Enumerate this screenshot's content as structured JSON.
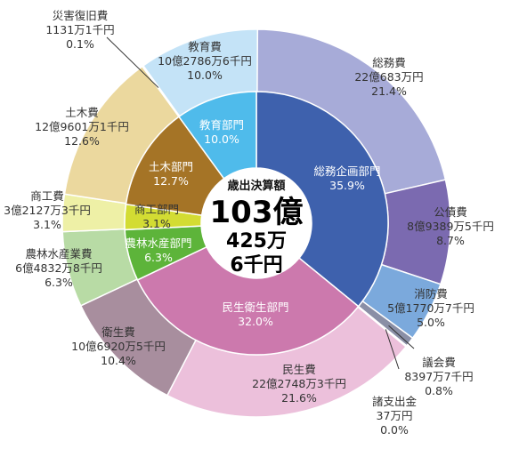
{
  "chart_data": [
    {
      "type": "pie",
      "ring": "outer",
      "slices": [
        {
          "name": "総務費",
          "amount": "22億683万円",
          "pct_label": "21.4%",
          "value": 21.4,
          "color": "#a7abd8"
        },
        {
          "name": "公債費",
          "amount": "8億9389万5千円",
          "pct_label": "8.7%",
          "value": 8.7,
          "color": "#7b6ab0"
        },
        {
          "name": "消防費",
          "amount": "5億1770万7千円",
          "pct_label": "5.0%",
          "value": 5.0,
          "color": "#7ba9dc"
        },
        {
          "name": "議会費",
          "amount": "8397万7千円",
          "pct_label": "0.8%",
          "value": 0.8,
          "color": "#8a8fa6"
        },
        {
          "name": "諸支出金",
          "amount": "37万円",
          "pct_label": "0.0%",
          "value": 0.0,
          "color": "#c0c0c0"
        },
        {
          "name": "民生費",
          "amount": "22億2748万3千円",
          "pct_label": "21.6%",
          "value": 21.6,
          "color": "#ecc0db"
        },
        {
          "name": "衛生費",
          "amount": "10億6920万5千円",
          "pct_label": "10.4%",
          "value": 10.4,
          "color": "#a88e9e"
        },
        {
          "name": "農林水産業費",
          "amount": "6億4832万8千円",
          "pct_label": "6.3%",
          "value": 6.3,
          "color": "#b8dba5"
        },
        {
          "name": "商工費",
          "amount": "3億2127万3千円",
          "pct_label": "3.1%",
          "value": 3.1,
          "color": "#eef0a6"
        },
        {
          "name": "土木費",
          "amount": "12億9601万1千円",
          "pct_label": "12.6%",
          "value": 12.6,
          "color": "#ebd89e"
        },
        {
          "name": "災害復旧費",
          "amount": "1131万1千円",
          "pct_label": "0.1%",
          "value": 0.1,
          "color": "#d8d8b8"
        },
        {
          "name": "教育費",
          "amount": "10億2786万6千円",
          "pct_label": "10.0%",
          "value": 10.0,
          "color": "#c4e3f7"
        }
      ]
    },
    {
      "type": "pie",
      "ring": "inner",
      "slices": [
        {
          "name": "総務企画部門",
          "pct_label": "35.9%",
          "value": 35.9,
          "color": "#3e61ad"
        },
        {
          "name": "民生衛生部門",
          "pct_label": "32.0%",
          "value": 32.0,
          "color": "#cc79ad"
        },
        {
          "name": "農林水産部門",
          "pct_label": "6.3%",
          "value": 6.3,
          "color": "#5db43a"
        },
        {
          "name": "商工部門",
          "pct_label": "3.1%",
          "value": 3.1,
          "color": "#d3dc33"
        },
        {
          "name": "土木部門",
          "pct_label": "12.7%",
          "value": 12.7,
          "color": "#a57426"
        },
        {
          "name": "教育部門",
          "pct_label": "10.0%",
          "value": 10.0,
          "color": "#4fbbeb"
        }
      ]
    }
  ],
  "center": {
    "caption": "歳出決算額",
    "line1": "103億",
    "line2": "425万",
    "line3": "6千円"
  }
}
